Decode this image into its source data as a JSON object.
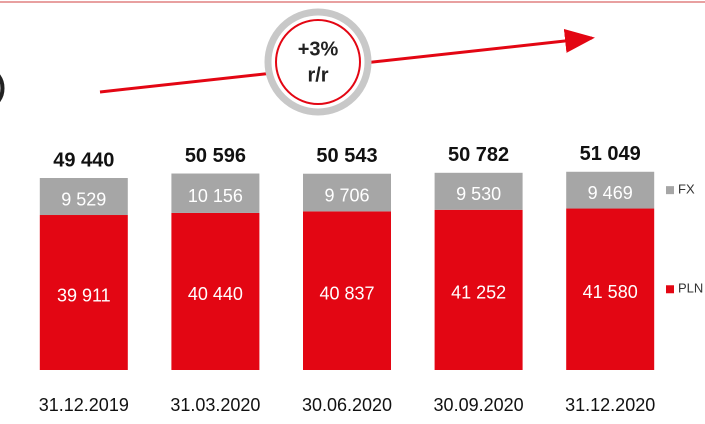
{
  "chart_data": {
    "type": "bar",
    "stacked": true,
    "title": ")",
    "annotation": {
      "line1": "+3%",
      "line2": "r/r"
    },
    "categories": [
      "31.12.2019",
      "31.03.2020",
      "30.06.2020",
      "30.09.2020",
      "31.12.2020"
    ],
    "series": [
      {
        "name": "PLN",
        "color": "#e30613",
        "values": [
          39911,
          40440,
          40837,
          41252,
          41580
        ],
        "value_labels": [
          "39 911",
          "40 440",
          "40 837",
          "41 252",
          "41 580"
        ]
      },
      {
        "name": "FX",
        "color": "#a6a6a6",
        "values": [
          9529,
          10156,
          9706,
          9530,
          9469
        ],
        "value_labels": [
          "9 529",
          "10 156",
          "9 706",
          "9 530",
          "9 469"
        ]
      }
    ],
    "total_labels": [
      "49 440",
      "50 596",
      "50 543",
      "50 782",
      "51 049"
    ],
    "ylim": [
      0,
      60000
    ]
  }
}
